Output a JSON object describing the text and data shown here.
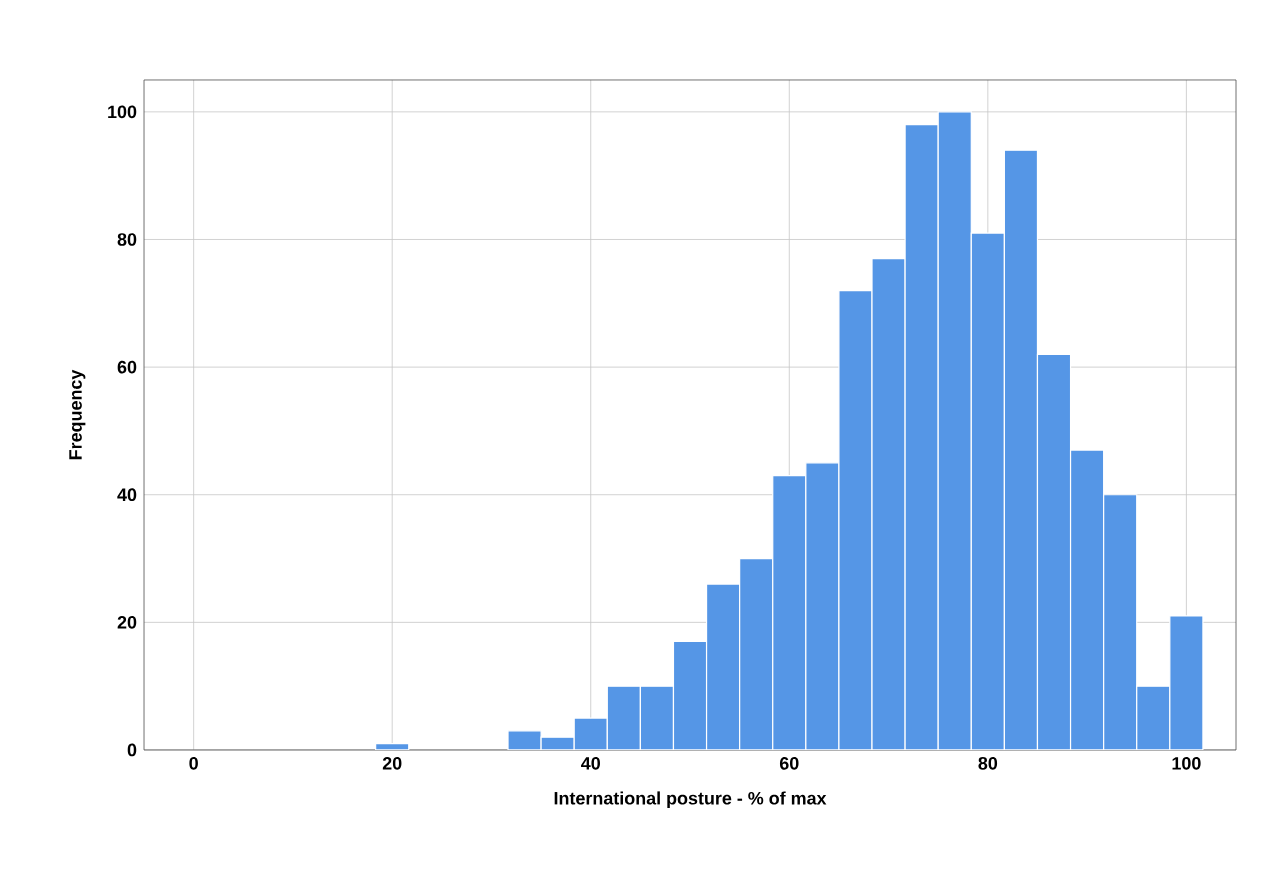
{
  "chart_data": {
    "type": "histogram",
    "xlabel": "International posture - % of max",
    "ylabel": "Frequency",
    "bins": [
      18.333,
      21.667,
      25,
      28.333,
      31.667,
      35,
      38.333,
      41.667,
      45,
      48.333,
      51.667,
      55,
      58.333,
      61.667,
      65,
      68.333,
      71.667,
      75,
      78.333,
      81.667,
      85,
      88.333,
      91.667,
      95,
      98.333,
      101.667
    ],
    "values": [
      1,
      0,
      0,
      0,
      3,
      2,
      5,
      10,
      10,
      17,
      26,
      30,
      43,
      45,
      72,
      77,
      98,
      100,
      81,
      94,
      62,
      47,
      40,
      10,
      21
    ],
    "color": "#5596e6",
    "xlim": [
      -5,
      105
    ],
    "ylim": [
      0,
      105
    ],
    "xticks": [
      0,
      20,
      40,
      60,
      80,
      100
    ],
    "yticks": [
      0,
      20,
      40,
      60,
      80,
      100
    ],
    "grid": true
  }
}
